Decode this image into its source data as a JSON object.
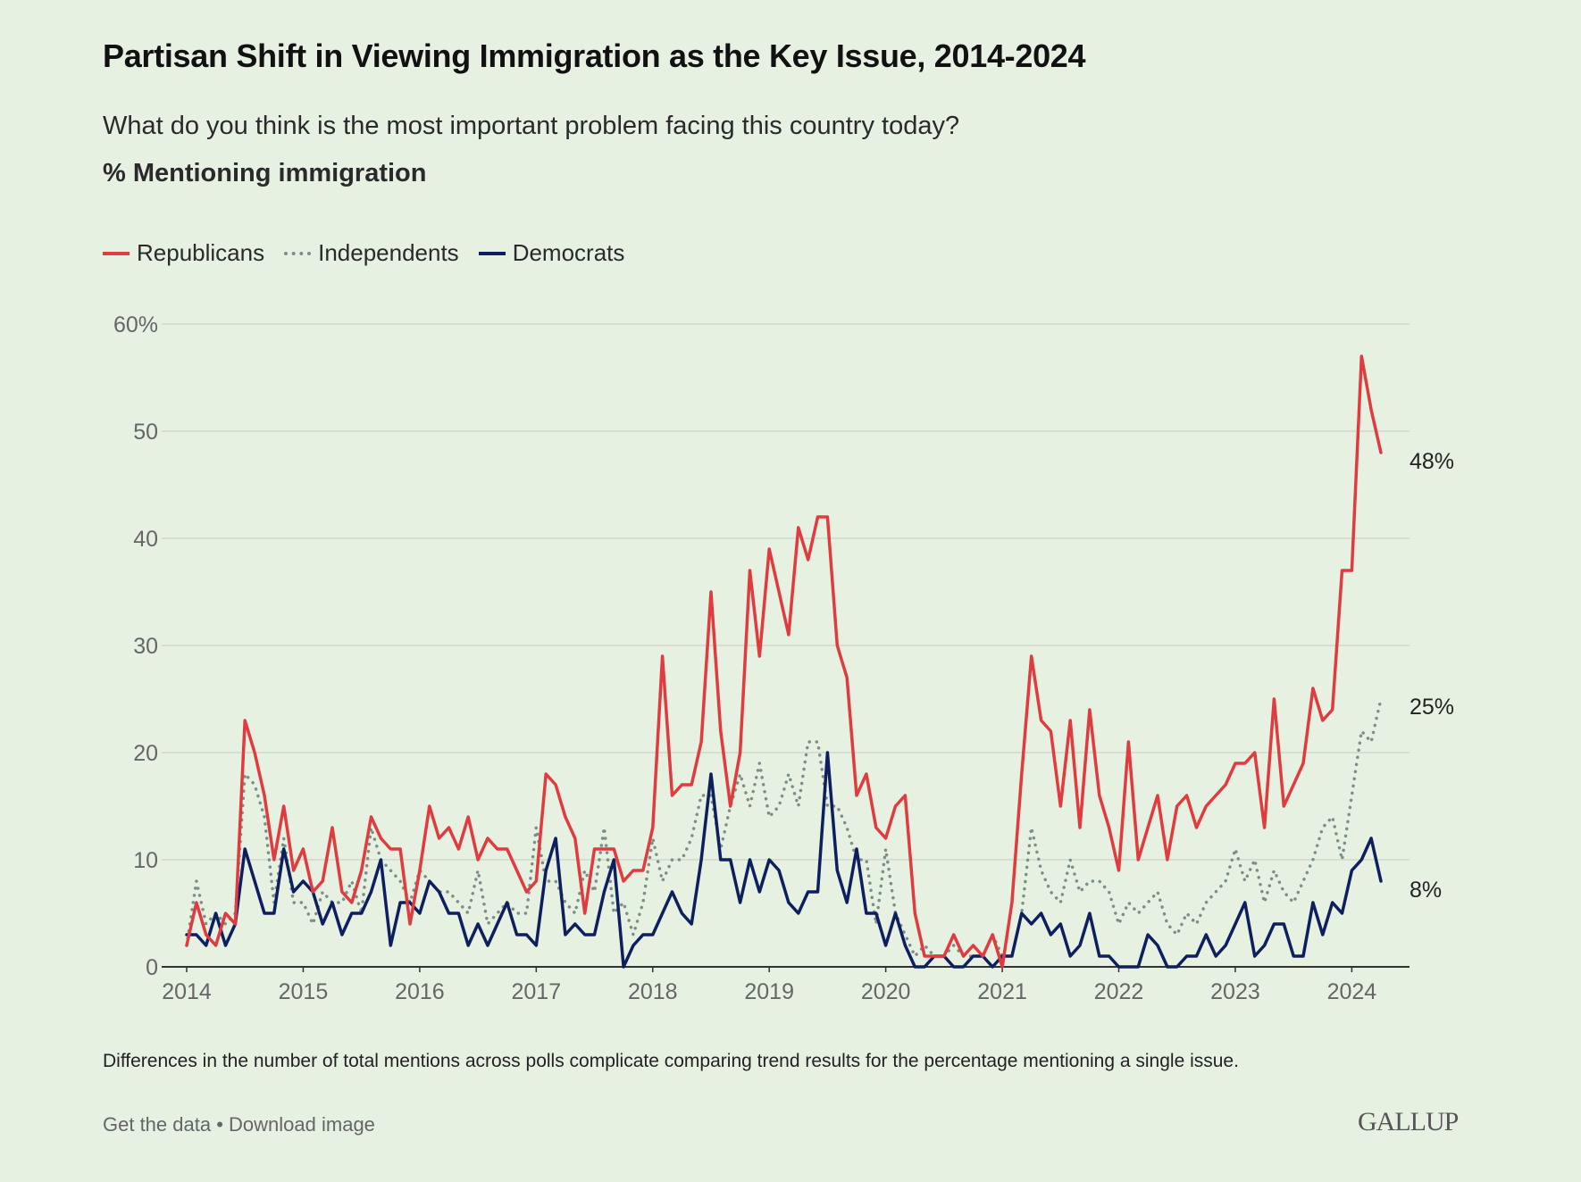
{
  "title": "Partisan Shift in Viewing Immigration as the Key Issue, 2014-2024",
  "subtitle": "What do you think is the most important problem facing this country today?",
  "unit_label": "% Mentioning immigration",
  "footnote": "Differences in the number of total mentions across polls complicate comparing trend results for the percentage mentioning a single issue.",
  "links": {
    "get_data": "Get the data",
    "separator": "•",
    "download": "Download image"
  },
  "logo": "GALLUP",
  "chart_data": {
    "type": "line",
    "title": "Partisan Shift in Viewing Immigration as the Key Issue, 2014-2024",
    "xlabel": "",
    "ylabel": "% Mentioning immigration",
    "ylim": [
      0,
      60
    ],
    "yticks": [
      "0",
      "10",
      "20",
      "30",
      "40",
      "50",
      "60%"
    ],
    "xticks": [
      "2014",
      "2015",
      "2016",
      "2017",
      "2018",
      "2019",
      "2020",
      "2021",
      "2022",
      "2023",
      "2024"
    ],
    "x_start": "2014-01",
    "x_frequency": "monthly",
    "grid": "horizontal",
    "legend": "top-left",
    "series": [
      {
        "name": "Republicans",
        "color": "#e03c3f",
        "style": "solid",
        "end_label": "48%",
        "values": [
          2,
          6,
          3,
          2,
          5,
          4,
          23,
          20,
          16,
          10,
          15,
          9,
          11,
          7,
          8,
          13,
          7,
          6,
          9,
          14,
          12,
          11,
          11,
          4,
          9,
          15,
          12,
          13,
          11,
          14,
          10,
          12,
          11,
          11,
          9,
          7,
          8,
          18,
          17,
          14,
          12,
          5,
          11,
          11,
          11,
          8,
          9,
          9,
          13,
          29,
          16,
          17,
          17,
          21,
          35,
          22,
          15,
          20,
          37,
          29,
          39,
          35,
          31,
          41,
          38,
          42,
          42,
          30,
          27,
          16,
          18,
          13,
          12,
          15,
          16,
          5,
          1,
          1,
          1,
          3,
          1,
          2,
          1,
          3,
          0,
          6,
          18,
          29,
          23,
          22,
          15,
          23,
          13,
          24,
          16,
          13,
          9,
          21,
          10,
          13,
          16,
          10,
          15,
          16,
          13,
          15,
          16,
          17,
          19,
          19,
          20,
          13,
          25,
          15,
          17,
          19,
          26,
          23,
          24,
          37,
          37,
          57,
          52,
          48
        ]
      },
      {
        "name": "Independents",
        "color": "#7b8f8a",
        "style": "dotted",
        "end_label": "25%",
        "values": [
          2,
          8,
          4,
          5,
          4,
          5,
          18,
          17,
          14,
          6,
          12,
          6,
          6,
          4,
          7,
          6,
          6,
          8,
          5,
          13,
          10,
          9,
          8,
          6,
          9,
          8,
          7,
          7,
          6,
          5,
          9,
          4,
          5,
          6,
          5,
          5,
          13,
          8,
          8,
          6,
          5,
          9,
          7,
          13,
          5,
          6,
          3,
          6,
          12,
          8,
          10,
          10,
          12,
          16,
          16,
          11,
          15,
          18,
          15,
          19,
          14,
          15,
          18,
          15,
          21,
          21,
          15,
          15,
          13,
          10,
          10,
          4,
          11,
          5,
          3,
          1,
          2,
          1,
          1,
          2,
          1,
          1,
          1,
          3,
          1,
          1,
          5,
          13,
          9,
          7,
          6,
          10,
          7,
          8,
          8,
          7,
          4,
          6,
          5,
          6,
          7,
          4,
          3,
          5,
          4,
          6,
          7,
          8,
          11,
          8,
          10,
          6,
          9,
          7,
          6,
          8,
          10,
          13,
          14,
          10,
          16,
          22,
          21,
          25
        ]
      },
      {
        "name": "Democrats",
        "color": "#0d1f5e",
        "style": "solid",
        "end_label": "8%",
        "values": [
          3,
          3,
          2,
          5,
          2,
          4,
          11,
          8,
          5,
          5,
          11,
          7,
          8,
          7,
          4,
          6,
          3,
          5,
          5,
          7,
          10,
          2,
          6,
          6,
          5,
          8,
          7,
          5,
          5,
          2,
          4,
          2,
          4,
          6,
          3,
          3,
          2,
          9,
          12,
          3,
          4,
          3,
          3,
          7,
          10,
          0,
          2,
          3,
          3,
          5,
          7,
          5,
          4,
          10,
          18,
          10,
          10,
          6,
          10,
          7,
          10,
          9,
          6,
          5,
          7,
          7,
          20,
          9,
          6,
          11,
          5,
          5,
          2,
          5,
          2,
          0,
          0,
          1,
          1,
          0,
          0,
          1,
          1,
          0,
          1,
          1,
          5,
          4,
          5,
          3,
          4,
          1,
          2,
          5,
          1,
          1,
          0,
          0,
          0,
          3,
          2,
          0,
          0,
          1,
          1,
          3,
          1,
          2,
          4,
          6,
          1,
          2,
          4,
          4,
          1,
          1,
          6,
          3,
          6,
          5,
          9,
          10,
          12,
          8
        ]
      }
    ]
  }
}
